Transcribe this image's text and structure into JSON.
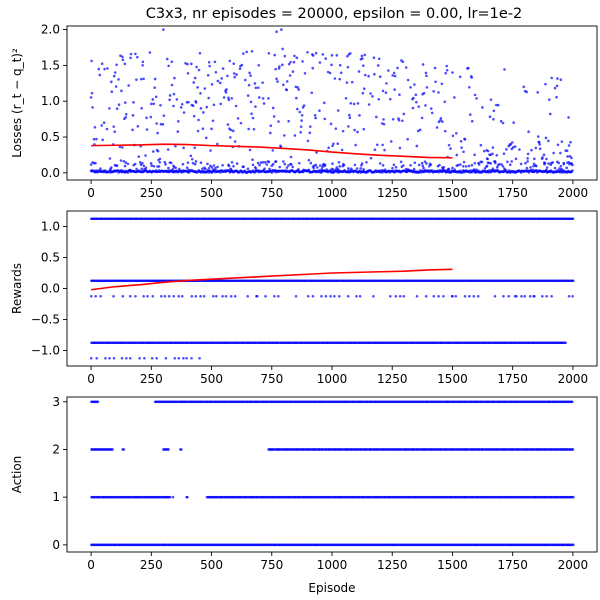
{
  "title": "C3x3, nr episodes = 20000, epsilon = 0.00, lr=1e-2",
  "chart_data": [
    {
      "type": "scatter",
      "ylabel": "Losses (r_t − q_t)²",
      "xlabel": "",
      "xlim": [
        -100,
        2100
      ],
      "ylim": [
        -0.1,
        2.05
      ],
      "xticks": [
        "0",
        "250",
        "500",
        "750",
        "1000",
        "1250",
        "1500",
        "1750",
        "2000"
      ],
      "yticks": [
        "0.0",
        "0.5",
        "1.0",
        "1.5",
        "2.0"
      ],
      "series_colors": {
        "points": "#0000ff",
        "moving_average": "#ff0000"
      },
      "points_description_x_range": [
        0,
        2000
      ],
      "moving_average": {
        "x": [
          0,
          100,
          200,
          300,
          400,
          500,
          600,
          700,
          800,
          900,
          1000,
          1100,
          1200,
          1300,
          1400,
          1500
        ],
        "y": [
          0.38,
          0.385,
          0.39,
          0.4,
          0.395,
          0.38,
          0.37,
          0.36,
          0.34,
          0.32,
          0.29,
          0.265,
          0.245,
          0.23,
          0.215,
          0.21
        ]
      },
      "point_clusters": [
        {
          "y_level": 0.01,
          "spread": 0.03,
          "density": "dense"
        },
        {
          "y_min": 0.05,
          "y_max": 1.6,
          "density": "sparse",
          "decreasing_after": 1000
        }
      ],
      "outliers": [
        {
          "x": 300,
          "y": 2.0
        },
        {
          "x": 130,
          "y": 1.62
        },
        {
          "x": 770,
          "y": 1.97
        },
        {
          "x": 790,
          "y": 2.0
        },
        {
          "x": 795,
          "y": 1.73
        },
        {
          "x": 1500,
          "y": 1.4
        },
        {
          "x": 1950,
          "y": 1.3
        },
        {
          "x": 215,
          "y": 1.55
        },
        {
          "x": 335,
          "y": 1.55
        }
      ]
    },
    {
      "type": "scatter",
      "ylabel": "Rewards",
      "xlabel": "",
      "xlim": [
        -100,
        2100
      ],
      "ylim": [
        -1.25,
        1.25
      ],
      "xticks": [
        "0",
        "250",
        "500",
        "750",
        "1000",
        "1250",
        "1500",
        "1750",
        "2000"
      ],
      "yticks": [
        "1.0",
        "0.5",
        "0.0",
        "−0.5",
        "−1.0"
      ],
      "reward_levels": [
        1.125,
        0.125,
        -0.125,
        -0.875,
        -1.125
      ],
      "level_extents": [
        {
          "y": 1.125,
          "x_min": 0,
          "x_max": 2000
        },
        {
          "y": 0.125,
          "x_min": 0,
          "x_max": 2000
        },
        {
          "y": -0.125,
          "x_min": 0,
          "x_max": 2000,
          "sparse": true
        },
        {
          "y": -0.875,
          "x_min": 0,
          "x_max": 1970
        },
        {
          "y": -1.125,
          "x_min": 0,
          "x_max": 460,
          "sparse": true
        }
      ],
      "moving_average": {
        "x": [
          0,
          100,
          200,
          300,
          400,
          500,
          600,
          700,
          800,
          900,
          1000,
          1100,
          1200,
          1300,
          1400,
          1500
        ],
        "y": [
          -0.02,
          0.03,
          0.06,
          0.1,
          0.13,
          0.15,
          0.17,
          0.19,
          0.21,
          0.23,
          0.25,
          0.26,
          0.27,
          0.28,
          0.3,
          0.31
        ]
      }
    },
    {
      "type": "scatter",
      "ylabel": "Action",
      "xlabel": "Episode",
      "xlim": [
        -100,
        2100
      ],
      "ylim": [
        -0.15,
        3.1
      ],
      "xticks": [
        "0",
        "250",
        "500",
        "750",
        "1000",
        "1250",
        "1500",
        "1750",
        "2000"
      ],
      "yticks": [
        "0",
        "1",
        "2",
        "3"
      ],
      "action_levels": [
        {
          "y": 3,
          "segments": [
            [
              0,
              30
            ],
            [
              265,
              2000
            ]
          ]
        },
        {
          "y": 2,
          "segments": [
            [
              0,
              90
            ],
            [
              130,
              135
            ],
            [
              300,
              320
            ],
            [
              370,
              375
            ],
            [
              735,
              2000
            ]
          ]
        },
        {
          "y": 1,
          "segments": [
            [
              0,
              330
            ],
            [
              340,
              340
            ],
            [
              395,
              400
            ],
            [
              480,
              2000
            ]
          ]
        },
        {
          "y": 0,
          "segments": [
            [
              0,
              2000
            ]
          ]
        }
      ]
    }
  ]
}
